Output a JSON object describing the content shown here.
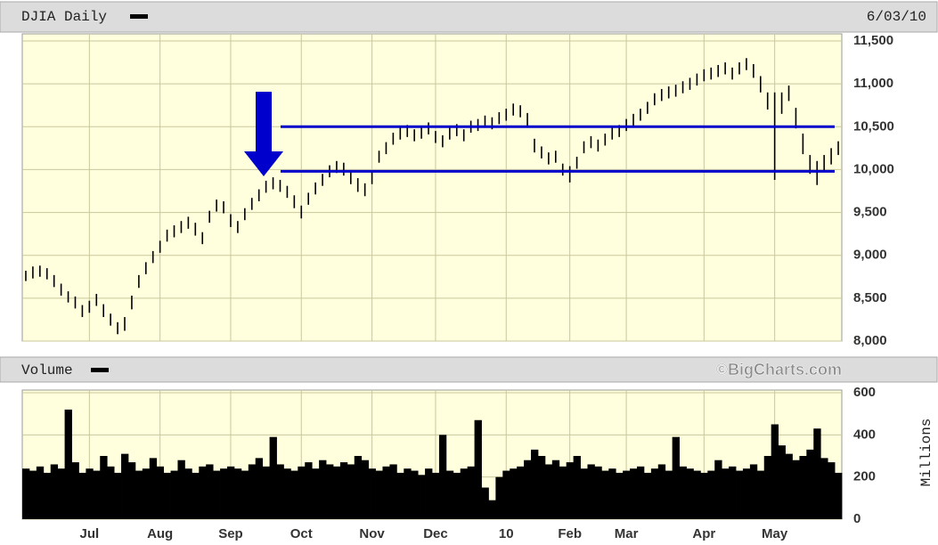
{
  "chart_data": [
    {
      "type": "ohlc",
      "title": "DJIA Daily",
      "subtitle": "6/03/10",
      "high": [
        8820,
        8870,
        8880,
        8850,
        8770,
        8670,
        8580,
        8520,
        8420,
        8470,
        8550,
        8430,
        8320,
        8220,
        8280,
        8530,
        8770,
        8920,
        9050,
        9170,
        9300,
        9350,
        9400,
        9450,
        9380,
        9270,
        9520,
        9650,
        9630,
        9480,
        9400,
        9550,
        9670,
        9770,
        9870,
        9910,
        9880,
        9810,
        9700,
        9580,
        9730,
        9850,
        9950,
        10050,
        10100,
        10080,
        9980,
        9900,
        9840,
        9980,
        10220,
        10320,
        10430,
        10490,
        10520,
        10470,
        10500,
        10550,
        10450,
        10400,
        10490,
        10530,
        10470,
        10570,
        10590,
        10630,
        10610,
        10670,
        10710,
        10770,
        10750,
        10660,
        10360,
        10270,
        10200,
        10220,
        10070,
        10040,
        10150,
        10330,
        10390,
        10350,
        10420,
        10490,
        10520,
        10590,
        10650,
        10710,
        10790,
        10890,
        10940,
        10970,
        10990,
        11030,
        11070,
        11120,
        11170,
        11190,
        11220,
        11250,
        11190,
        11250,
        11300,
        11230,
        11090,
        10900,
        10900,
        10900,
        10980,
        10720,
        10420,
        10170,
        10100,
        10170,
        10250,
        10330
      ],
      "low": [
        8700,
        8730,
        8750,
        8720,
        8630,
        8530,
        8450,
        8380,
        8280,
        8330,
        8410,
        8280,
        8180,
        8080,
        8120,
        8370,
        8620,
        8780,
        8910,
        9030,
        9160,
        9210,
        9260,
        9310,
        9230,
        9130,
        9380,
        9510,
        9490,
        9330,
        9260,
        9410,
        9530,
        9630,
        9730,
        9770,
        9740,
        9670,
        9550,
        9430,
        9590,
        9710,
        9810,
        9910,
        9960,
        9930,
        9830,
        9740,
        9690,
        9830,
        10080,
        10180,
        10290,
        10350,
        10380,
        10330,
        10360,
        10410,
        10310,
        10260,
        10350,
        10390,
        10330,
        10430,
        10450,
        10490,
        10470,
        10530,
        10570,
        10630,
        10610,
        10510,
        10200,
        10130,
        10060,
        10080,
        9930,
        9850,
        10010,
        10190,
        10250,
        10210,
        10280,
        10350,
        10380,
        10450,
        10510,
        10570,
        10650,
        10750,
        10800,
        10830,
        10850,
        10890,
        10930,
        10980,
        11030,
        11050,
        11080,
        11110,
        11050,
        11110,
        11160,
        11070,
        10900,
        10700,
        9880,
        10650,
        10800,
        10480,
        10180,
        9950,
        9820,
        9990,
        10060,
        10170
      ],
      "color": "#000000",
      "annotation_lines": [
        10500,
        9980
      ],
      "annotation_color": "#0000cc",
      "ylim": [
        8000,
        11500
      ],
      "yticks": [
        {
          "value": 8000,
          "label": "8,000"
        },
        {
          "value": 8500,
          "label": "8,500"
        },
        {
          "value": 9000,
          "label": "9,000"
        },
        {
          "value": 9500,
          "label": "9,500"
        },
        {
          "value": 10000,
          "label": "10,000"
        },
        {
          "value": 10500,
          "label": "10,500"
        },
        {
          "value": 11000,
          "label": "11,000"
        },
        {
          "value": 11500,
          "label": "11,500"
        }
      ],
      "grid": true
    },
    {
      "type": "bar",
      "title": "Volume",
      "subtitle": "©BigCharts.com",
      "y_label": "Millions",
      "categories": [
        null,
        null,
        null,
        null,
        null,
        null,
        null,
        null,
        null,
        "Jul",
        null,
        null,
        null,
        null,
        null,
        null,
        null,
        null,
        null,
        "Aug",
        null,
        null,
        null,
        null,
        null,
        null,
        null,
        null,
        null,
        "Sep",
        null,
        null,
        null,
        null,
        null,
        null,
        null,
        null,
        null,
        "Oct",
        null,
        null,
        null,
        null,
        null,
        null,
        null,
        null,
        null,
        "Nov",
        null,
        null,
        null,
        null,
        null,
        null,
        null,
        null,
        "Dec",
        null,
        null,
        null,
        null,
        null,
        null,
        null,
        null,
        null,
        "10",
        null,
        null,
        null,
        null,
        null,
        null,
        null,
        null,
        "Feb",
        null,
        null,
        null,
        null,
        null,
        null,
        null,
        "Mar",
        null,
        null,
        null,
        null,
        null,
        null,
        null,
        null,
        null,
        null,
        "Apr",
        null,
        null,
        null,
        null,
        null,
        null,
        null,
        null,
        null,
        "May",
        null,
        null,
        null,
        null,
        null,
        null,
        null,
        null,
        null
      ],
      "values": [
        240,
        230,
        250,
        220,
        260,
        240,
        520,
        270,
        220,
        240,
        230,
        300,
        250,
        220,
        310,
        270,
        230,
        240,
        290,
        250,
        220,
        230,
        280,
        240,
        220,
        250,
        260,
        230,
        240,
        250,
        240,
        230,
        260,
        290,
        250,
        390,
        260,
        240,
        230,
        250,
        270,
        240,
        280,
        260,
        250,
        270,
        260,
        300,
        280,
        240,
        230,
        250,
        260,
        220,
        240,
        230,
        210,
        240,
        220,
        400,
        230,
        220,
        240,
        250,
        470,
        150,
        90,
        200,
        230,
        240,
        250,
        280,
        330,
        300,
        260,
        280,
        250,
        270,
        300,
        240,
        260,
        250,
        230,
        240,
        220,
        230,
        240,
        250,
        220,
        240,
        260,
        230,
        390,
        250,
        240,
        230,
        220,
        230,
        280,
        240,
        250,
        230,
        240,
        260,
        230,
        300,
        450,
        350,
        310,
        280,
        300,
        330,
        430,
        290,
        270,
        220
      ],
      "color": "#000000",
      "ylim": [
        0,
        600
      ],
      "yticks": [
        0,
        200,
        400,
        600
      ],
      "grid": true
    }
  ]
}
